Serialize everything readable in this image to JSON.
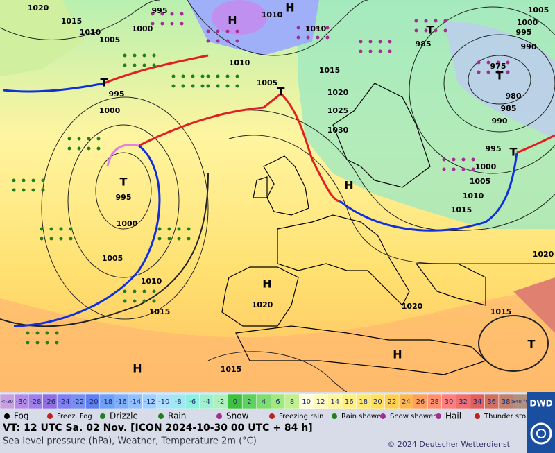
{
  "map": {
    "isobar_labels": [
      "1020",
      "1015",
      "1010",
      "1005",
      "995",
      "1000",
      "1010",
      "1010",
      "1010",
      "1005",
      "995",
      "1000",
      "995",
      "1000",
      "1005",
      "1010",
      "1015",
      "1015",
      "1020",
      "1025",
      "1030",
      "1005",
      "1000",
      "995",
      "990",
      "985",
      "975",
      "980",
      "985",
      "990",
      "995",
      "1000",
      "1005",
      "1010",
      "1015",
      "1020",
      "1020",
      "1020",
      "1015",
      "1015"
    ],
    "high_labels": [
      "H",
      "H",
      "H",
      "H",
      "H",
      "H"
    ],
    "low_labels": [
      "T",
      "T",
      "T",
      "T",
      "T",
      "T",
      "T"
    ]
  },
  "color_scale": [
    {
      "label": "<-30",
      "color": "#c8a0e0"
    },
    {
      "label": "-30",
      "color": "#b48ce8"
    },
    {
      "label": "-28",
      "color": "#a080e8"
    },
    {
      "label": "-26",
      "color": "#9070e0"
    },
    {
      "label": "-24",
      "color": "#8080f0"
    },
    {
      "label": "-22",
      "color": "#7890f0"
    },
    {
      "label": "-20",
      "color": "#6080f0"
    },
    {
      "label": "-18",
      "color": "#70a0f8"
    },
    {
      "label": "-16",
      "color": "#80b0f8"
    },
    {
      "label": "-14",
      "color": "#90c0ff"
    },
    {
      "label": "-12",
      "color": "#a0d0ff"
    },
    {
      "label": "-10",
      "color": "#b0e0ff"
    },
    {
      "label": "-8",
      "color": "#a0e8f0"
    },
    {
      "label": "-6",
      "color": "#90f0e0"
    },
    {
      "label": "-4",
      "color": "#a0f0d0"
    },
    {
      "label": "-2",
      "color": "#b0f0c0"
    },
    {
      "label": "0",
      "color": "#40c040"
    },
    {
      "label": "2",
      "color": "#60d060"
    },
    {
      "label": "4",
      "color": "#80dc70"
    },
    {
      "label": "6",
      "color": "#a0e880"
    },
    {
      "label": "8",
      "color": "#c0f090"
    },
    {
      "label": "10",
      "color": "#fffde0"
    },
    {
      "label": "12",
      "color": "#fffac0"
    },
    {
      "label": "14",
      "color": "#fff5a0"
    },
    {
      "label": "16",
      "color": "#fff080"
    },
    {
      "label": "18",
      "color": "#ffe870"
    },
    {
      "label": "20",
      "color": "#ffe060"
    },
    {
      "label": "22",
      "color": "#ffd050"
    },
    {
      "label": "24",
      "color": "#ffb850"
    },
    {
      "label": "26",
      "color": "#ffa060"
    },
    {
      "label": "28",
      "color": "#ff9070"
    },
    {
      "label": "30",
      "color": "#ff8080"
    },
    {
      "label": "32",
      "color": "#f07070"
    },
    {
      "label": "34",
      "color": "#e06060"
    },
    {
      "label": "36",
      "color": "#d07060"
    },
    {
      "label": "38",
      "color": "#c08070"
    },
    {
      "label": "≥40 °C",
      "color": "#b09080"
    }
  ],
  "legend": [
    "Fog",
    "Freez. Fog",
    "Drizzle",
    "Rain",
    "Snow",
    "Freezing rain",
    "Rain shower",
    "Snow shower",
    "Hail",
    "Thunder storm"
  ],
  "footer": {
    "valid_time": "VT: 12 UTC Sa.  02 Nov. [ICON 2024-10-30  00 UTC + 84 h]",
    "description": "Sea level pressure (hPa), Weather, Temperature 2m (°C)",
    "copyright": "© 2024 Deutscher Wetterdienst",
    "logo": "DWD"
  }
}
